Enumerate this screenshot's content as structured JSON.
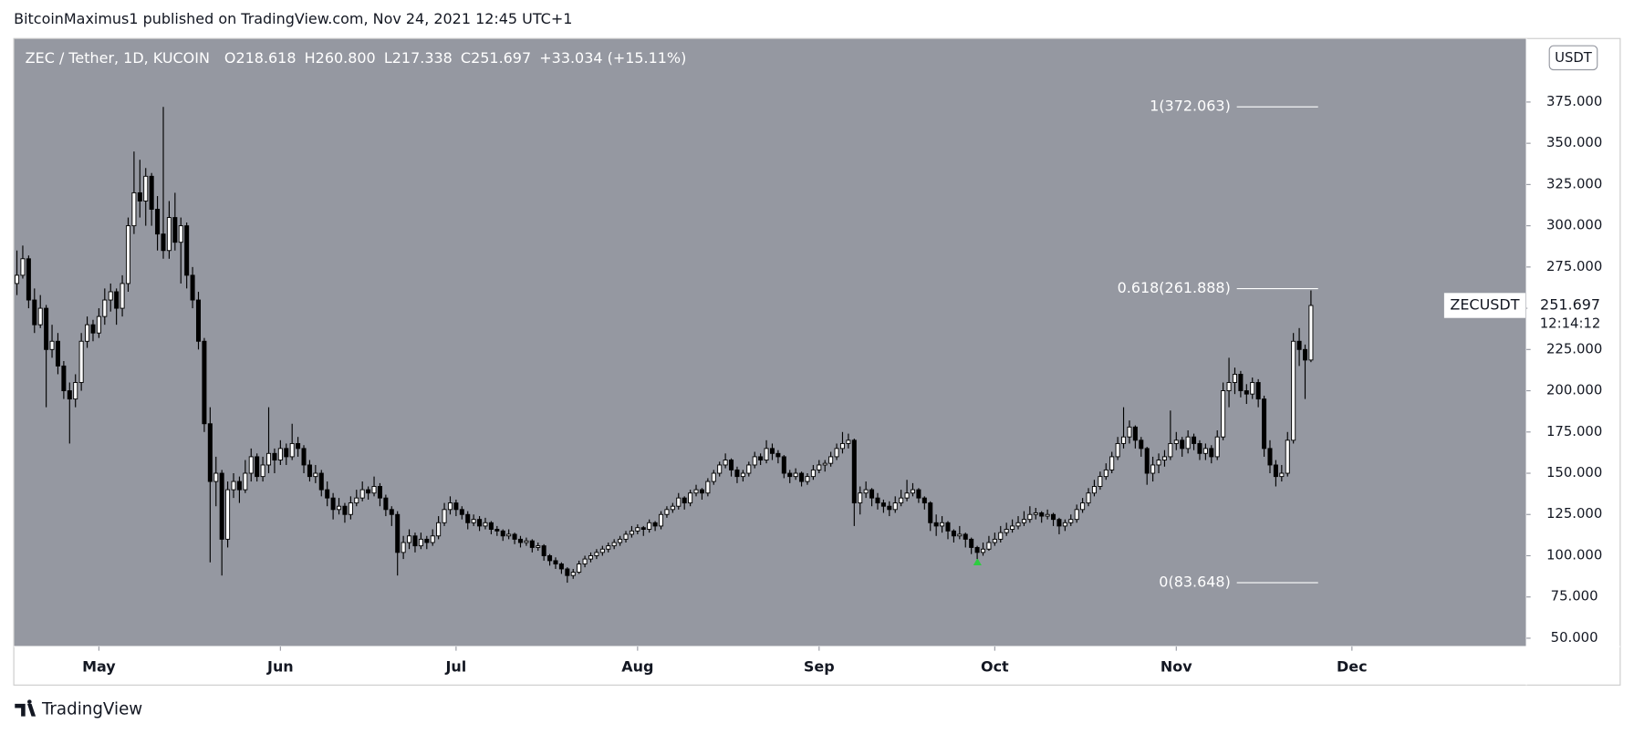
{
  "header": "BitcoinMaximus1 published on TradingView.com, Nov 24, 2021 12:45 UTC+1",
  "footer": "TradingView",
  "chart_data": {
    "type": "candlestick",
    "legend": {
      "symbol": "ZEC / Tether, 1D, KUCOIN",
      "items": [
        {
          "key": "O",
          "value": "218.618"
        },
        {
          "key": "H",
          "value": "260.800"
        },
        {
          "key": "L",
          "value": "217.338"
        },
        {
          "key": "C",
          "value": "251.697"
        }
      ],
      "change": "+33.034 (+15.11%)"
    },
    "currency": "USDT",
    "symbol_tag": "ZECUSDT",
    "last_price": 251.697,
    "last_price_label": "251.697",
    "countdown": "12:14:12",
    "up_color": "#ffffff",
    "down_color": "#000000",
    "background": "#9598a1",
    "xlim": [
      -0.53,
      257.8
    ],
    "xticks": [
      {
        "value": 14,
        "label": "May"
      },
      {
        "value": 45,
        "label": "Jun"
      },
      {
        "value": 75,
        "label": "Jul"
      },
      {
        "value": 106,
        "label": "Aug"
      },
      {
        "value": 137,
        "label": "Sep"
      },
      {
        "value": 167,
        "label": "Oct"
      },
      {
        "value": 198,
        "label": "Nov"
      },
      {
        "value": 228,
        "label": "Dec"
      }
    ],
    "ylim": [
      44.95,
      413.5
    ],
    "yticks": [
      {
        "value": 50,
        "label": "50.000"
      },
      {
        "value": 75,
        "label": "75.000"
      },
      {
        "value": 100,
        "label": "100.000"
      },
      {
        "value": 125,
        "label": "125.000"
      },
      {
        "value": 150,
        "label": "150.000"
      },
      {
        "value": 175,
        "label": "175.000"
      },
      {
        "value": 200,
        "label": "200.000"
      },
      {
        "value": 225,
        "label": "225.000"
      },
      {
        "value": 250,
        "label": "250.000"
      },
      {
        "value": 275,
        "label": "275.000"
      },
      {
        "value": 300,
        "label": "300.000"
      },
      {
        "value": 325,
        "label": "325.000"
      },
      {
        "value": 350,
        "label": "350.000"
      },
      {
        "value": 375,
        "label": "375.000"
      }
    ],
    "fib_levels": [
      {
        "label": "1(372.063)",
        "value": 372.063
      },
      {
        "label": "0.618(261.888)",
        "value": 261.888
      },
      {
        "label": "0(83.648)",
        "value": 83.648
      }
    ],
    "ohlc": [
      [
        265,
        285,
        258,
        270
      ],
      [
        270,
        288,
        268,
        280
      ],
      [
        280,
        282,
        250,
        255
      ],
      [
        255,
        262,
        235,
        240
      ],
      [
        240,
        258,
        238,
        250
      ],
      [
        250,
        252,
        190,
        225
      ],
      [
        225,
        240,
        220,
        230
      ],
      [
        230,
        235,
        210,
        215
      ],
      [
        215,
        218,
        195,
        200
      ],
      [
        200,
        205,
        168,
        195
      ],
      [
        195,
        210,
        190,
        205
      ],
      [
        205,
        235,
        200,
        230
      ],
      [
        230,
        245,
        226,
        240
      ],
      [
        240,
        243,
        230,
        235
      ],
      [
        235,
        250,
        232,
        245
      ],
      [
        245,
        262,
        240,
        255
      ],
      [
        255,
        265,
        248,
        260
      ],
      [
        260,
        262,
        240,
        250
      ],
      [
        250,
        270,
        245,
        265
      ],
      [
        265,
        305,
        260,
        300
      ],
      [
        300,
        345,
        295,
        320
      ],
      [
        320,
        340,
        305,
        315
      ],
      [
        315,
        335,
        300,
        330
      ],
      [
        330,
        332,
        300,
        310
      ],
      [
        310,
        318,
        285,
        295
      ],
      [
        295,
        372.063,
        280,
        285
      ],
      [
        285,
        315,
        280,
        305
      ],
      [
        305,
        320,
        285,
        290
      ],
      [
        290,
        305,
        265,
        300
      ],
      [
        300,
        302,
        262,
        270
      ],
      [
        270,
        275,
        250,
        255
      ],
      [
        255,
        260,
        225,
        230
      ],
      [
        230,
        232,
        175,
        180
      ],
      [
        180,
        190,
        96,
        145
      ],
      [
        145,
        160,
        130,
        150
      ],
      [
        150,
        152,
        88,
        110
      ],
      [
        110,
        145,
        105,
        140
      ],
      [
        140,
        150,
        135,
        145
      ],
      [
        145,
        148,
        132,
        140
      ],
      [
        140,
        158,
        138,
        150
      ],
      [
        150,
        165,
        145,
        160
      ],
      [
        160,
        162,
        145,
        148
      ],
      [
        148,
        160,
        145,
        155
      ],
      [
        155,
        190,
        150,
        162
      ],
      [
        162,
        165,
        150,
        158
      ],
      [
        158,
        170,
        155,
        165
      ],
      [
        165,
        168,
        155,
        160
      ],
      [
        160,
        180,
        158,
        168
      ],
      [
        168,
        172,
        160,
        165
      ],
      [
        165,
        167,
        150,
        155
      ],
      [
        155,
        158,
        145,
        148
      ],
      [
        148,
        155,
        144,
        150
      ],
      [
        150,
        152,
        136,
        140
      ],
      [
        140,
        145,
        130,
        135
      ],
      [
        135,
        138,
        122,
        128
      ],
      [
        128,
        135,
        125,
        130
      ],
      [
        130,
        132,
        120,
        125
      ],
      [
        125,
        136,
        122,
        132
      ],
      [
        132,
        140,
        130,
        135
      ],
      [
        135,
        145,
        133,
        140
      ],
      [
        140,
        142,
        134,
        138
      ],
      [
        138,
        148,
        136,
        142
      ],
      [
        142,
        144,
        130,
        135
      ],
      [
        135,
        137,
        124,
        128
      ],
      [
        128,
        130,
        118,
        125
      ],
      [
        125,
        127,
        88,
        102
      ],
      [
        102,
        112,
        98,
        108
      ],
      [
        108,
        116,
        104,
        112
      ],
      [
        112,
        114,
        102,
        106
      ],
      [
        106,
        114,
        104,
        110
      ],
      [
        110,
        112,
        104,
        108
      ],
      [
        108,
        116,
        106,
        112
      ],
      [
        112,
        124,
        110,
        120
      ],
      [
        120,
        132,
        118,
        128
      ],
      [
        128,
        136,
        125,
        132
      ],
      [
        132,
        134,
        124,
        128
      ],
      [
        128,
        130,
        122,
        125
      ],
      [
        125,
        127,
        116,
        120
      ],
      [
        120,
        125,
        118,
        122
      ],
      [
        122,
        124,
        115,
        118
      ],
      [
        118,
        123,
        116,
        120
      ],
      [
        120,
        121,
        113,
        116
      ],
      [
        116,
        118,
        112,
        115
      ],
      [
        115,
        116,
        109,
        112
      ],
      [
        112,
        116,
        110,
        113
      ],
      [
        113,
        114,
        107,
        110
      ],
      [
        110,
        112,
        105,
        108
      ],
      [
        108,
        111,
        106,
        109
      ],
      [
        109,
        110,
        102,
        105
      ],
      [
        105,
        108,
        103,
        106
      ],
      [
        106,
        107,
        97,
        100
      ],
      [
        100,
        101,
        94,
        97
      ],
      [
        97,
        99,
        92,
        95
      ],
      [
        95,
        96,
        89,
        92
      ],
      [
        92,
        93,
        83.648,
        88
      ],
      [
        88,
        92,
        86,
        90
      ],
      [
        90,
        97,
        89,
        95
      ],
      [
        95,
        100,
        93,
        98
      ],
      [
        98,
        102,
        96,
        100
      ],
      [
        100,
        104,
        98,
        102
      ],
      [
        102,
        106,
        100,
        104
      ],
      [
        104,
        108,
        102,
        106
      ],
      [
        106,
        110,
        104,
        108
      ],
      [
        108,
        112,
        106,
        110
      ],
      [
        110,
        115,
        108,
        113
      ],
      [
        113,
        118,
        111,
        115
      ],
      [
        115,
        119,
        113,
        117
      ],
      [
        117,
        118,
        112,
        116
      ],
      [
        116,
        122,
        114,
        120
      ],
      [
        120,
        121,
        115,
        118
      ],
      [
        118,
        127,
        116,
        125
      ],
      [
        125,
        130,
        123,
        128
      ],
      [
        128,
        132,
        126,
        130
      ],
      [
        130,
        138,
        128,
        135
      ],
      [
        135,
        136,
        128,
        132
      ],
      [
        132,
        140,
        130,
        138
      ],
      [
        138,
        143,
        136,
        140
      ],
      [
        140,
        141,
        134,
        138
      ],
      [
        138,
        147,
        136,
        145
      ],
      [
        145,
        152,
        143,
        150
      ],
      [
        150,
        157,
        148,
        155
      ],
      [
        155,
        162,
        153,
        158
      ],
      [
        158,
        159,
        148,
        152
      ],
      [
        152,
        154,
        144,
        148
      ],
      [
        148,
        152,
        145,
        150
      ],
      [
        150,
        157,
        148,
        155
      ],
      [
        155,
        163,
        153,
        160
      ],
      [
        160,
        162,
        155,
        158
      ],
      [
        158,
        170,
        156,
        165
      ],
      [
        165,
        168,
        158,
        162
      ],
      [
        162,
        164,
        156,
        160
      ],
      [
        160,
        161,
        147,
        150
      ],
      [
        150,
        152,
        144,
        148
      ],
      [
        148,
        153,
        146,
        150
      ],
      [
        150,
        151,
        142,
        145
      ],
      [
        145,
        150,
        143,
        148
      ],
      [
        148,
        155,
        146,
        152
      ],
      [
        152,
        158,
        150,
        155
      ],
      [
        155,
        158,
        151,
        156
      ],
      [
        156,
        163,
        154,
        160
      ],
      [
        160,
        168,
        158,
        165
      ],
      [
        165,
        175,
        162,
        168
      ],
      [
        168,
        174,
        165,
        170
      ],
      [
        170,
        171,
        118,
        132
      ],
      [
        132,
        142,
        125,
        138
      ],
      [
        138,
        145,
        135,
        140
      ],
      [
        140,
        141,
        130,
        135
      ],
      [
        135,
        138,
        128,
        132
      ],
      [
        132,
        134,
        126,
        130
      ],
      [
        130,
        133,
        124,
        128
      ],
      [
        128,
        136,
        126,
        132
      ],
      [
        132,
        140,
        130,
        135
      ],
      [
        135,
        146,
        133,
        138
      ],
      [
        138,
        144,
        136,
        140
      ],
      [
        140,
        141,
        132,
        135
      ],
      [
        135,
        136,
        128,
        132
      ],
      [
        132,
        133,
        115,
        120
      ],
      [
        120,
        125,
        112,
        118
      ],
      [
        118,
        124,
        114,
        120
      ],
      [
        120,
        121,
        110,
        115
      ],
      [
        115,
        116,
        108,
        112
      ],
      [
        112,
        118,
        110,
        113
      ],
      [
        113,
        114,
        105,
        110
      ],
      [
        110,
        111,
        101,
        105
      ],
      [
        105,
        106,
        98,
        102
      ],
      [
        102,
        108,
        100,
        104
      ],
      [
        104,
        112,
        103,
        108
      ],
      [
        108,
        114,
        106,
        110
      ],
      [
        110,
        118,
        108,
        114
      ],
      [
        114,
        120,
        112,
        116
      ],
      [
        116,
        122,
        114,
        118
      ],
      [
        118,
        124,
        116,
        120
      ],
      [
        120,
        127,
        118,
        122
      ],
      [
        122,
        130,
        120,
        125
      ],
      [
        125,
        129,
        122,
        126
      ],
      [
        126,
        127,
        120,
        124
      ],
      [
        124,
        128,
        122,
        125
      ],
      [
        125,
        126,
        118,
        122
      ],
      [
        122,
        123,
        113,
        118
      ],
      [
        118,
        122,
        115,
        120
      ],
      [
        120,
        125,
        118,
        122
      ],
      [
        122,
        131,
        120,
        128
      ],
      [
        128,
        135,
        126,
        132
      ],
      [
        132,
        141,
        130,
        138
      ],
      [
        138,
        146,
        136,
        142
      ],
      [
        142,
        151,
        140,
        148
      ],
      [
        148,
        156,
        146,
        152
      ],
      [
        152,
        163,
        150,
        160
      ],
      [
        160,
        172,
        158,
        168
      ],
      [
        168,
        190,
        165,
        172
      ],
      [
        172,
        182,
        168,
        178
      ],
      [
        178,
        179,
        165,
        170
      ],
      [
        170,
        172,
        160,
        165
      ],
      [
        165,
        166,
        143,
        150
      ],
      [
        150,
        160,
        145,
        155
      ],
      [
        155,
        162,
        150,
        158
      ],
      [
        158,
        164,
        154,
        160
      ],
      [
        160,
        188,
        158,
        168
      ],
      [
        168,
        175,
        164,
        170
      ],
      [
        170,
        172,
        160,
        165
      ],
      [
        165,
        176,
        162,
        172
      ],
      [
        172,
        174,
        164,
        168
      ],
      [
        168,
        170,
        158,
        162
      ],
      [
        162,
        168,
        158,
        165
      ],
      [
        165,
        167,
        156,
        160
      ],
      [
        160,
        176,
        158,
        172
      ],
      [
        172,
        205,
        170,
        200
      ],
      [
        200,
        220,
        190,
        205
      ],
      [
        205,
        214,
        198,
        210
      ],
      [
        210,
        212,
        196,
        200
      ],
      [
        200,
        204,
        192,
        198
      ],
      [
        198,
        208,
        195,
        205
      ],
      [
        205,
        207,
        190,
        195
      ],
      [
        195,
        197,
        160,
        165
      ],
      [
        165,
        170,
        150,
        155
      ],
      [
        155,
        158,
        142,
        148
      ],
      [
        148,
        155,
        145,
        150
      ],
      [
        150,
        175,
        148,
        170
      ],
      [
        170,
        235,
        168,
        230
      ],
      [
        230,
        238,
        215,
        225
      ],
      [
        225,
        228,
        195,
        218.618
      ],
      [
        218.618,
        260.8,
        217.338,
        251.697
      ]
    ]
  }
}
